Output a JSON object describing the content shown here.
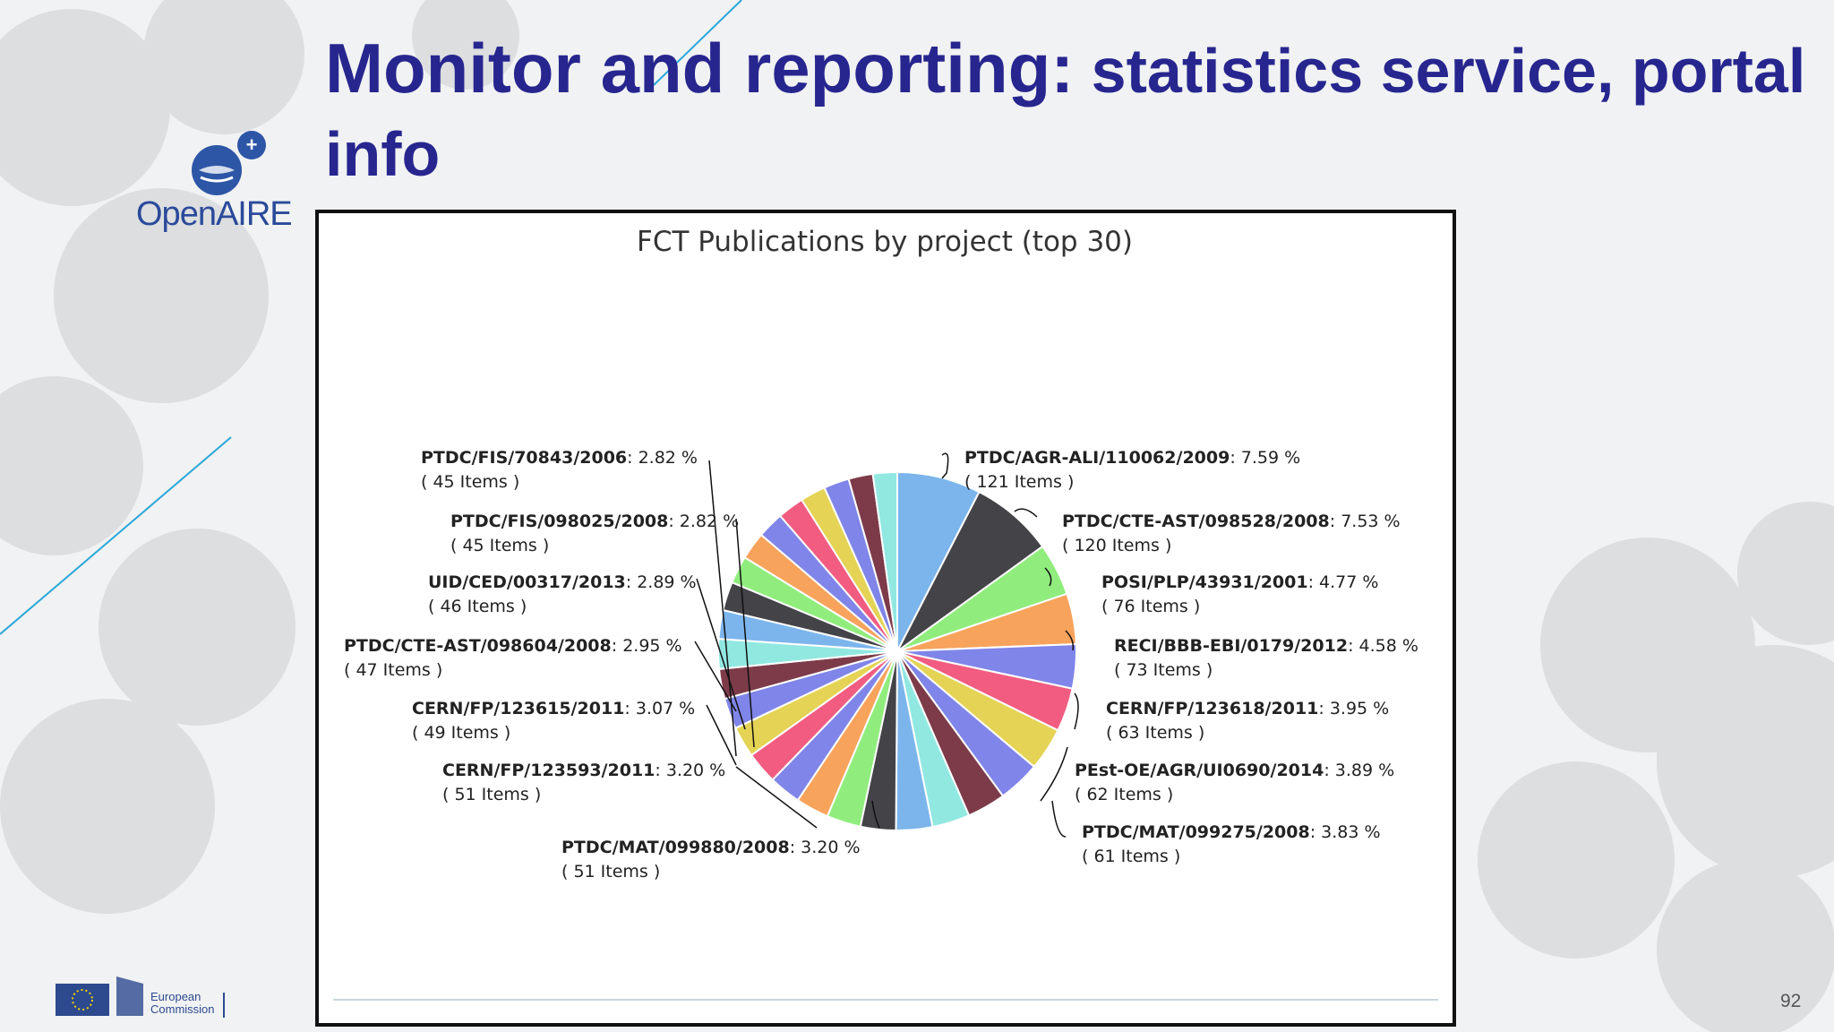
{
  "slide": {
    "title_main": "Monitor and reporting:",
    "title_rest": " statistics service, portal info",
    "page_number": "92"
  },
  "logo": {
    "name": "OpenAIRE",
    "plus_symbol": "+"
  },
  "footer_logo": {
    "line1": "European",
    "line2": "Commission"
  },
  "chart_data": {
    "type": "pie",
    "title": "FCT Publications by project (top 30)",
    "total_slices": 30,
    "unlabeled_slices": 18,
    "slices": [
      {
        "label": "PTDC/AGR-ALI/110062/2009",
        "percent": "7.59 %",
        "items": "( 121 Items )",
        "value": 7.59,
        "color": "#7cb5ec"
      },
      {
        "label": "PTDC/CTE-AST/098528/2008",
        "percent": "7.53 %",
        "items": "( 120 Items )",
        "value": 7.53,
        "color": "#434348"
      },
      {
        "label": "POSI/PLP/43931/2001",
        "percent": "4.77 %",
        "items": "( 76 Items )",
        "value": 4.77,
        "color": "#90ed7d"
      },
      {
        "label": "RECI/BBB-EBI/0179/2012",
        "percent": "4.58 %",
        "items": "( 73 Items )",
        "value": 4.58,
        "color": "#f7a35c"
      },
      {
        "label": "",
        "percent": "",
        "items": "",
        "value": 4.0,
        "color": "#8085e9"
      },
      {
        "label": "CERN/FP/123618/2011",
        "percent": "3.95 %",
        "items": "( 63 Items )",
        "value": 3.95,
        "color": "#f15c80"
      },
      {
        "label": "PEst-OE/AGR/UI0690/2014",
        "percent": "3.89 %",
        "items": "( 62 Items )",
        "value": 3.89,
        "color": "#e4d354"
      },
      {
        "label": "PTDC/MAT/099275/2008",
        "percent": "3.83 %",
        "items": "( 61 Items )",
        "value": 3.83,
        "color": "#8085e9"
      },
      {
        "label": "",
        "percent": "",
        "items": "",
        "value": 3.5,
        "color": "#7d3b4a"
      },
      {
        "label": "",
        "percent": "",
        "items": "",
        "value": 3.4,
        "color": "#91e8e1"
      },
      {
        "label": "",
        "percent": "",
        "items": "",
        "value": 3.3,
        "color": "#7cb5ec"
      },
      {
        "label": "PTDC/MAT/099880/2008",
        "percent": "3.20 %",
        "items": "( 51 Items )",
        "value": 3.2,
        "color": "#434348"
      },
      {
        "label": "",
        "percent": "",
        "items": "",
        "value": 3.1,
        "color": "#90ed7d"
      },
      {
        "label": "",
        "percent": "",
        "items": "",
        "value": 3.0,
        "color": "#f7a35c"
      },
      {
        "label": "",
        "percent": "",
        "items": "",
        "value": 2.9,
        "color": "#8085e9"
      },
      {
        "label": "",
        "percent": "",
        "items": "",
        "value": 2.9,
        "color": "#f15c80"
      },
      {
        "label": "",
        "percent": "",
        "items": "",
        "value": 2.8,
        "color": "#e4d354"
      },
      {
        "label": "",
        "percent": "",
        "items": "",
        "value": 2.8,
        "color": "#8085e9"
      },
      {
        "label": "",
        "percent": "",
        "items": "",
        "value": 2.7,
        "color": "#7d3b4a"
      },
      {
        "label": "",
        "percent": "",
        "items": "",
        "value": 2.7,
        "color": "#91e8e1"
      },
      {
        "label": "",
        "percent": "",
        "items": "",
        "value": 2.6,
        "color": "#7cb5ec"
      },
      {
        "label": "",
        "percent": "",
        "items": "",
        "value": 2.6,
        "color": "#434348"
      },
      {
        "label": "",
        "percent": "",
        "items": "",
        "value": 2.5,
        "color": "#90ed7d"
      },
      {
        "label": "",
        "percent": "",
        "items": "",
        "value": 2.5,
        "color": "#f7a35c"
      },
      {
        "label": "",
        "percent": "",
        "items": "",
        "value": 2.4,
        "color": "#8085e9"
      },
      {
        "label": "",
        "percent": "",
        "items": "",
        "value": 2.4,
        "color": "#f15c80"
      },
      {
        "label": "",
        "percent": "",
        "items": "",
        "value": 2.3,
        "color": "#e4d354"
      },
      {
        "label": "",
        "percent": "",
        "items": "",
        "value": 2.3,
        "color": "#8085e9"
      },
      {
        "label": "",
        "percent": "",
        "items": "",
        "value": 2.2,
        "color": "#7d3b4a"
      },
      {
        "label": "",
        "percent": "",
        "items": "",
        "value": 2.2,
        "color": "#91e8e1"
      }
    ],
    "left_labels": [
      {
        "label": "PTDC/FIS/70843/2006",
        "percent": "2.82 %",
        "items": "( 45 Items )"
      },
      {
        "label": "PTDC/FIS/098025/2008",
        "percent": "2.82 %",
        "items": "( 45 Items )"
      },
      {
        "label": "UID/CED/00317/2013",
        "percent": "2.89 %",
        "items": "( 46 Items )"
      },
      {
        "label": "PTDC/CTE-AST/098604/2008",
        "percent": "2.95 %",
        "items": "( 47 Items )"
      },
      {
        "label": "CERN/FP/123615/2011",
        "percent": "3.07 %",
        "items": "( 49 Items )"
      },
      {
        "label": "CERN/FP/123593/2011",
        "percent": "3.20 %",
        "items": "( 51 Items )"
      }
    ],
    "legend": "none",
    "grid": false
  }
}
